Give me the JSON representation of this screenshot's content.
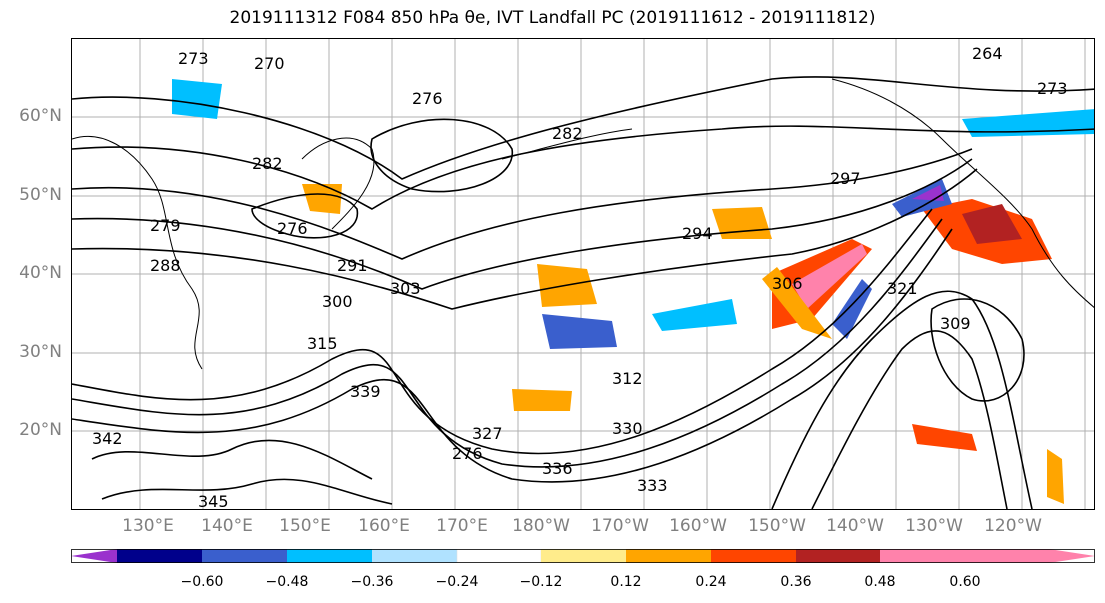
{
  "title": "2019111312 F084 850 hPa θe, IVT Landfall PC (2019111612 - 2019111812)",
  "map": {
    "lat_labels": [
      "60°N",
      "50°N",
      "40°N",
      "30°N",
      "20°N"
    ],
    "lon_labels": [
      "130°E",
      "140°E",
      "150°E",
      "160°E",
      "170°E",
      "180°W",
      "170°W",
      "160°W",
      "150°W",
      "140°W",
      "130°W",
      "120°W"
    ],
    "contour_labels": [
      "273",
      "270",
      "276",
      "282",
      "279",
      "276",
      "282",
      "288",
      "291",
      "294",
      "297",
      "300",
      "303",
      "306",
      "309",
      "312",
      "315",
      "321",
      "327",
      "330",
      "333",
      "336",
      "339",
      "342",
      "345",
      "264",
      "273",
      "276"
    ],
    "colors": {
      "contour": "#000000",
      "grid": "#b0b0b0",
      "coast": "#000000"
    }
  },
  "colorbar": {
    "colors": [
      "#9a32cd",
      "#00008b",
      "#3a5fcd",
      "#00bfff",
      "#b0e2ff",
      "#ffffff",
      "#ffec8b",
      "#ffa500",
      "#ff4500",
      "#b22222",
      "#ff82ab"
    ],
    "tick_labels": [
      "−0.60",
      "−0.48",
      "−0.36",
      "−0.24",
      "−0.12",
      "0.12",
      "0.24",
      "0.36",
      "0.48",
      "0.60"
    ]
  }
}
